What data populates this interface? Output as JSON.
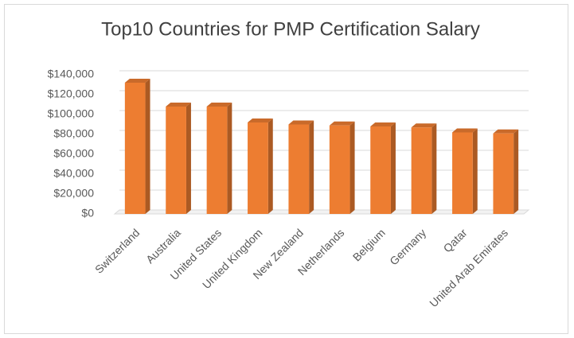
{
  "chart_data": {
    "type": "bar",
    "title": "Top10 Countries for PMP Certification Salary",
    "categories": [
      "Switzerland",
      "Australia",
      "United States",
      "United Kingdom",
      "New Zealand",
      "Netherlands",
      "Belgium",
      "Germany",
      "Qatar",
      "United Arab Emirates"
    ],
    "values": [
      132000,
      108000,
      108000,
      92000,
      90000,
      89000,
      88000,
      87000,
      82000,
      81000
    ],
    "color": "#ed7d31",
    "ylim": [
      0,
      140000
    ],
    "yticks": [
      {
        "value": 0,
        "label": "$0"
      },
      {
        "value": 20000,
        "label": "$20,000"
      },
      {
        "value": 40000,
        "label": "$40,000"
      },
      {
        "value": 60000,
        "label": "$60,000"
      },
      {
        "value": 80000,
        "label": "$80,000"
      },
      {
        "value": 100000,
        "label": "$100,000"
      },
      {
        "value": 120000,
        "label": "$120,000"
      },
      {
        "value": 140000,
        "label": "$140,000"
      }
    ],
    "grid": true
  }
}
